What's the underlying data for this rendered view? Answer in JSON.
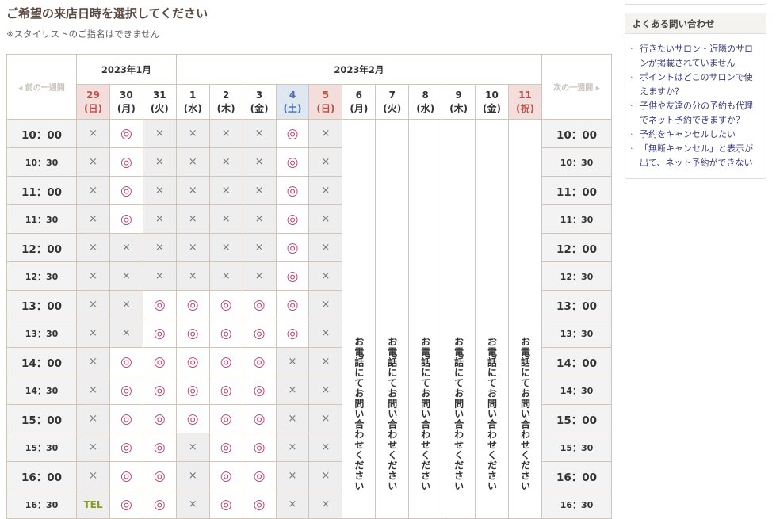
{
  "title": "ご希望の来店日時を選択してください",
  "note": "※スタイリストのご指名はできません",
  "nav": {
    "prev": "◂ 前の一週間",
    "next": "次の一週間 ▸"
  },
  "months": [
    {
      "label": "2023年1月",
      "span": 3
    },
    {
      "label": "2023年2月",
      "span": 11
    }
  ],
  "days": [
    {
      "d": "29",
      "w": "(日)",
      "type": "sun"
    },
    {
      "d": "30",
      "w": "(月)"
    },
    {
      "d": "31",
      "w": "(火)"
    },
    {
      "d": "1",
      "w": "(水)"
    },
    {
      "d": "2",
      "w": "(木)"
    },
    {
      "d": "3",
      "w": "(金)"
    },
    {
      "d": "4",
      "w": "(土)",
      "type": "sat"
    },
    {
      "d": "5",
      "w": "(日)",
      "type": "sun"
    },
    {
      "d": "6",
      "w": "(月)"
    },
    {
      "d": "7",
      "w": "(火)"
    },
    {
      "d": "8",
      "w": "(水)"
    },
    {
      "d": "9",
      "w": "(木)"
    },
    {
      "d": "10",
      "w": "(金)"
    },
    {
      "d": "11",
      "w": "(祝)",
      "type": "hol"
    }
  ],
  "phone_only_text": "お電話にてお問い合わせください",
  "symbols": {
    "o": "◎",
    "x": "×",
    "tel": "TEL"
  },
  "slots": [
    {
      "time": "10：00",
      "cells": [
        "x",
        "o",
        "x",
        "x",
        "x",
        "x",
        "o",
        "x"
      ]
    },
    {
      "time": "10：30",
      "cells": [
        "x",
        "o",
        "x",
        "x",
        "x",
        "x",
        "o",
        "x"
      ]
    },
    {
      "time": "11：00",
      "cells": [
        "x",
        "o",
        "x",
        "x",
        "x",
        "x",
        "o",
        "x"
      ]
    },
    {
      "time": "11：30",
      "cells": [
        "x",
        "o",
        "x",
        "x",
        "x",
        "x",
        "o",
        "x"
      ]
    },
    {
      "time": "12：00",
      "cells": [
        "x",
        "x",
        "x",
        "x",
        "x",
        "x",
        "o",
        "x"
      ]
    },
    {
      "time": "12：30",
      "cells": [
        "x",
        "x",
        "x",
        "x",
        "x",
        "x",
        "o",
        "x"
      ]
    },
    {
      "time": "13：00",
      "cells": [
        "x",
        "x",
        "o",
        "o",
        "o",
        "o",
        "o",
        "x"
      ]
    },
    {
      "time": "13：30",
      "cells": [
        "x",
        "x",
        "o",
        "o",
        "o",
        "o",
        "o",
        "x"
      ]
    },
    {
      "time": "14：00",
      "cells": [
        "x",
        "o",
        "o",
        "o",
        "o",
        "o",
        "x",
        "x"
      ]
    },
    {
      "time": "14：30",
      "cells": [
        "x",
        "o",
        "o",
        "o",
        "o",
        "o",
        "x",
        "x"
      ]
    },
    {
      "time": "15：00",
      "cells": [
        "x",
        "o",
        "o",
        "o",
        "o",
        "o",
        "x",
        "x"
      ]
    },
    {
      "time": "15：30",
      "cells": [
        "x",
        "o",
        "o",
        "x",
        "o",
        "o",
        "x",
        "x"
      ]
    },
    {
      "time": "16：00",
      "cells": [
        "x",
        "o",
        "o",
        "x",
        "o",
        "o",
        "x",
        "x"
      ]
    },
    {
      "time": "16：30",
      "cells": [
        "tel",
        "o",
        "o",
        "x",
        "o",
        "o",
        "x",
        "x"
      ]
    }
  ],
  "faq": {
    "title": "よくある問い合わせ",
    "items": [
      "行きたいサロン・近隣のサロンが掲載されていません",
      "ポイントはどこのサロンで使えますか？",
      "子供や友達の分の予約も代理でネット予約できますか？",
      "予約をキャンセルしたい",
      "「無断キャンセル」と表示が出て、ネット予約ができない"
    ]
  },
  "colors": {
    "available": "#c9417a",
    "unavailable": "#777777",
    "tel": "#8a9a2a",
    "sunday": "#c0504d",
    "saturday": "#4a6fb0",
    "link": "#3b3f7a"
  }
}
